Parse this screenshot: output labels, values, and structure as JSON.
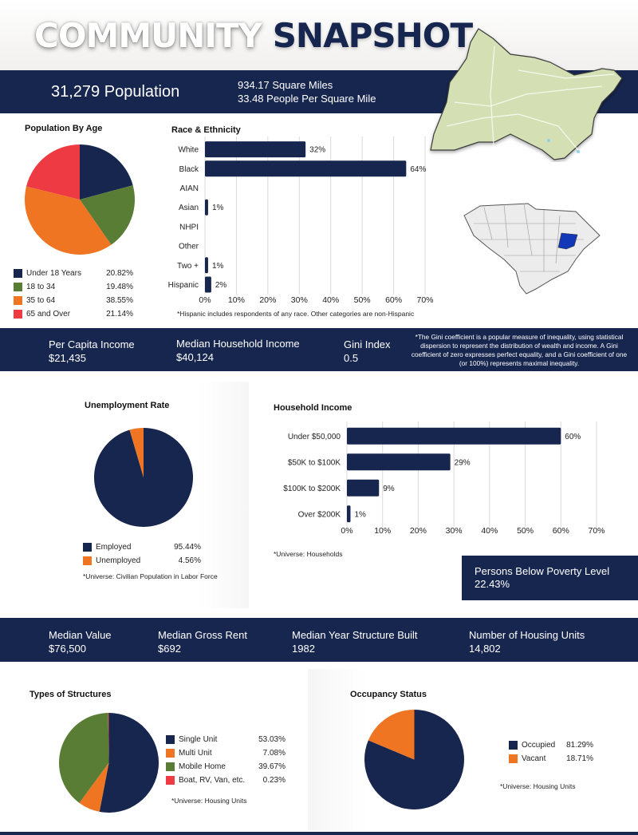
{
  "header": {
    "title_word1": "COMMUNITY",
    "title_word2": "SNAPSHOT",
    "population": "31,279 Population",
    "square_miles": "934.17 Square Miles",
    "density": "33.48 People Per Square Mile"
  },
  "colors": {
    "navy": "#17264f",
    "green": "#5a7d36",
    "orange": "#f07522",
    "red": "#ee3a43",
    "highlight_county": "#1238b8",
    "map_land": "#d4e0b4"
  },
  "income_band": {
    "per_capita_label": "Per Capita Income",
    "per_capita_value": "$21,435",
    "median_hh_label": "Median Household Income",
    "median_hh_value": "$40,124",
    "gini_label": "Gini Index",
    "gini_value": "0.5",
    "gini_note": "*The Gini coefficient is a popular measure of inequality, using statistical dispersion to represent the distribution of wealth and income. A Gini coefficient of zero expresses perfect equality, and a Gini coefficient of one (or 100%) represents maximal inequality."
  },
  "poverty": {
    "label": "Persons Below Poverty Level",
    "value": "22.43%"
  },
  "housing_band": {
    "items": [
      {
        "label": "Median Value",
        "value": "$76,500"
      },
      {
        "label": "Median Gross Rent",
        "value": "$692"
      },
      {
        "label": "Median Year Structure Built",
        "value": "1982"
      },
      {
        "label": "Number of Housing Units",
        "value": "14,802"
      }
    ]
  },
  "chart_data": [
    {
      "id": "age",
      "type": "pie",
      "title": "Population By Age",
      "categories": [
        "Under 18 Years",
        "18 to 34",
        "35 to 64",
        "65 and Over"
      ],
      "values": [
        20.82,
        19.48,
        38.55,
        21.14
      ],
      "value_labels": [
        "20.82%",
        "19.48%",
        "38.55%",
        "21.14%"
      ],
      "colors": [
        "#17264f",
        "#5a7d36",
        "#f07522",
        "#ee3a43"
      ],
      "legend": "bottom"
    },
    {
      "id": "race",
      "type": "bar",
      "orientation": "horizontal",
      "title": "Race & Ethnicity",
      "categories": [
        "White",
        "Black",
        "AIAN",
        "Asian",
        "NHPI",
        "Other",
        "Two +",
        "Hispanic"
      ],
      "values": [
        32,
        64,
        0,
        1,
        0,
        0,
        1,
        2
      ],
      "value_labels": [
        "32%",
        "64%",
        "",
        "1%",
        "",
        "",
        "1%",
        "2%"
      ],
      "xlim": [
        0,
        70
      ],
      "xticks": [
        "0%",
        "10%",
        "20%",
        "30%",
        "40%",
        "50%",
        "60%",
        "70%"
      ],
      "grid": true,
      "note": "*Hispanic includes respondents of any race. Other categories are non-Hispanic"
    },
    {
      "id": "employment",
      "type": "pie",
      "title": "Unemployment Rate",
      "categories": [
        "Employed",
        "Unemployed"
      ],
      "values": [
        95.44,
        4.56
      ],
      "value_labels": [
        "95.44%",
        "4.56%"
      ],
      "colors": [
        "#17264f",
        "#f07522"
      ],
      "legend": "bottom",
      "note": "*Universe: Civilian Population in Labor Force"
    },
    {
      "id": "household_income",
      "type": "bar",
      "orientation": "horizontal",
      "title": "Household Income",
      "categories": [
        "Under $50,000",
        "$50K to $100K",
        "$100K to $200K",
        "Over $200K"
      ],
      "values": [
        60,
        29,
        9,
        1
      ],
      "value_labels": [
        "60%",
        "29%",
        "9%",
        "1%"
      ],
      "xlim": [
        0,
        70
      ],
      "xticks": [
        "0%",
        "10%",
        "20%",
        "30%",
        "40%",
        "50%",
        "60%",
        "70%"
      ],
      "grid": true,
      "note": "*Universe: Households"
    },
    {
      "id": "structures",
      "type": "pie",
      "title": "Types of Structures",
      "categories": [
        "Single Unit",
        "Multi Unit",
        "Mobile Home",
        "Boat, RV, Van, etc."
      ],
      "values": [
        53.03,
        7.08,
        39.67,
        0.23
      ],
      "value_labels": [
        "53.03%",
        "7.08%",
        "39.67%",
        "0.23%"
      ],
      "colors": [
        "#17264f",
        "#f07522",
        "#5a7d36",
        "#ee3a43"
      ],
      "legend": "right",
      "note": "*Universe: Housing Units"
    },
    {
      "id": "occupancy",
      "type": "pie",
      "title": "Occupancy Status",
      "categories": [
        "Occupied",
        "Vacant"
      ],
      "values": [
        81.29,
        18.71
      ],
      "value_labels": [
        "81.29%",
        "18.71%"
      ],
      "colors": [
        "#17264f",
        "#f07522"
      ],
      "legend": "right",
      "note": "*Universe: Housing Units"
    }
  ]
}
